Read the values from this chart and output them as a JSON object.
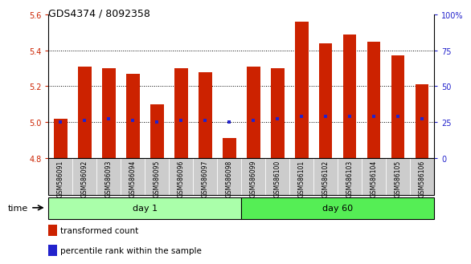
{
  "title": "GDS4374 / 8092358",
  "samples": [
    "GSM586091",
    "GSM586092",
    "GSM586093",
    "GSM586094",
    "GSM586095",
    "GSM586096",
    "GSM586097",
    "GSM586098",
    "GSM586099",
    "GSM586100",
    "GSM586101",
    "GSM586102",
    "GSM586103",
    "GSM586104",
    "GSM586105",
    "GSM586106"
  ],
  "bar_tops": [
    5.02,
    5.31,
    5.3,
    5.27,
    5.1,
    5.3,
    5.28,
    4.91,
    5.31,
    5.3,
    5.56,
    5.44,
    5.49,
    5.45,
    5.37,
    5.21
  ],
  "bar_bottoms": [
    4.8,
    4.8,
    4.8,
    4.8,
    4.8,
    4.8,
    4.8,
    4.8,
    4.8,
    4.8,
    4.8,
    4.8,
    4.8,
    4.8,
    4.8,
    4.8
  ],
  "percentile_values": [
    5.0,
    5.01,
    5.02,
    5.01,
    5.0,
    5.01,
    5.01,
    5.0,
    5.01,
    5.02,
    5.03,
    5.03,
    5.03,
    5.03,
    5.03,
    5.02
  ],
  "bar_color": "#cc2200",
  "percentile_color": "#2222cc",
  "ylim_left": [
    4.8,
    5.6
  ],
  "ylim_right": [
    0,
    100
  ],
  "yticks_left": [
    4.8,
    5.0,
    5.2,
    5.4,
    5.6
  ],
  "yticks_right": [
    0,
    25,
    50,
    75,
    100
  ],
  "ytick_labels_right": [
    "0",
    "25",
    "50",
    "75",
    "100%"
  ],
  "groups": [
    {
      "label": "day 1",
      "start": 0,
      "end": 8
    },
    {
      "label": "day 60",
      "start": 8,
      "end": 16
    }
  ],
  "group_color_light": "#aaffaa",
  "group_color_dark": "#55ee55",
  "bar_width": 0.55,
  "legend_red_label": "transformed count",
  "legend_blue_label": "percentile rank within the sample",
  "time_label": "time",
  "tick_label_color_left": "#cc2200",
  "tick_label_color_right": "#2222cc",
  "xtick_bg_color": "#cccccc",
  "plot_bg_color": "#ffffff",
  "grid_yticks": [
    5.0,
    5.2,
    5.4
  ]
}
